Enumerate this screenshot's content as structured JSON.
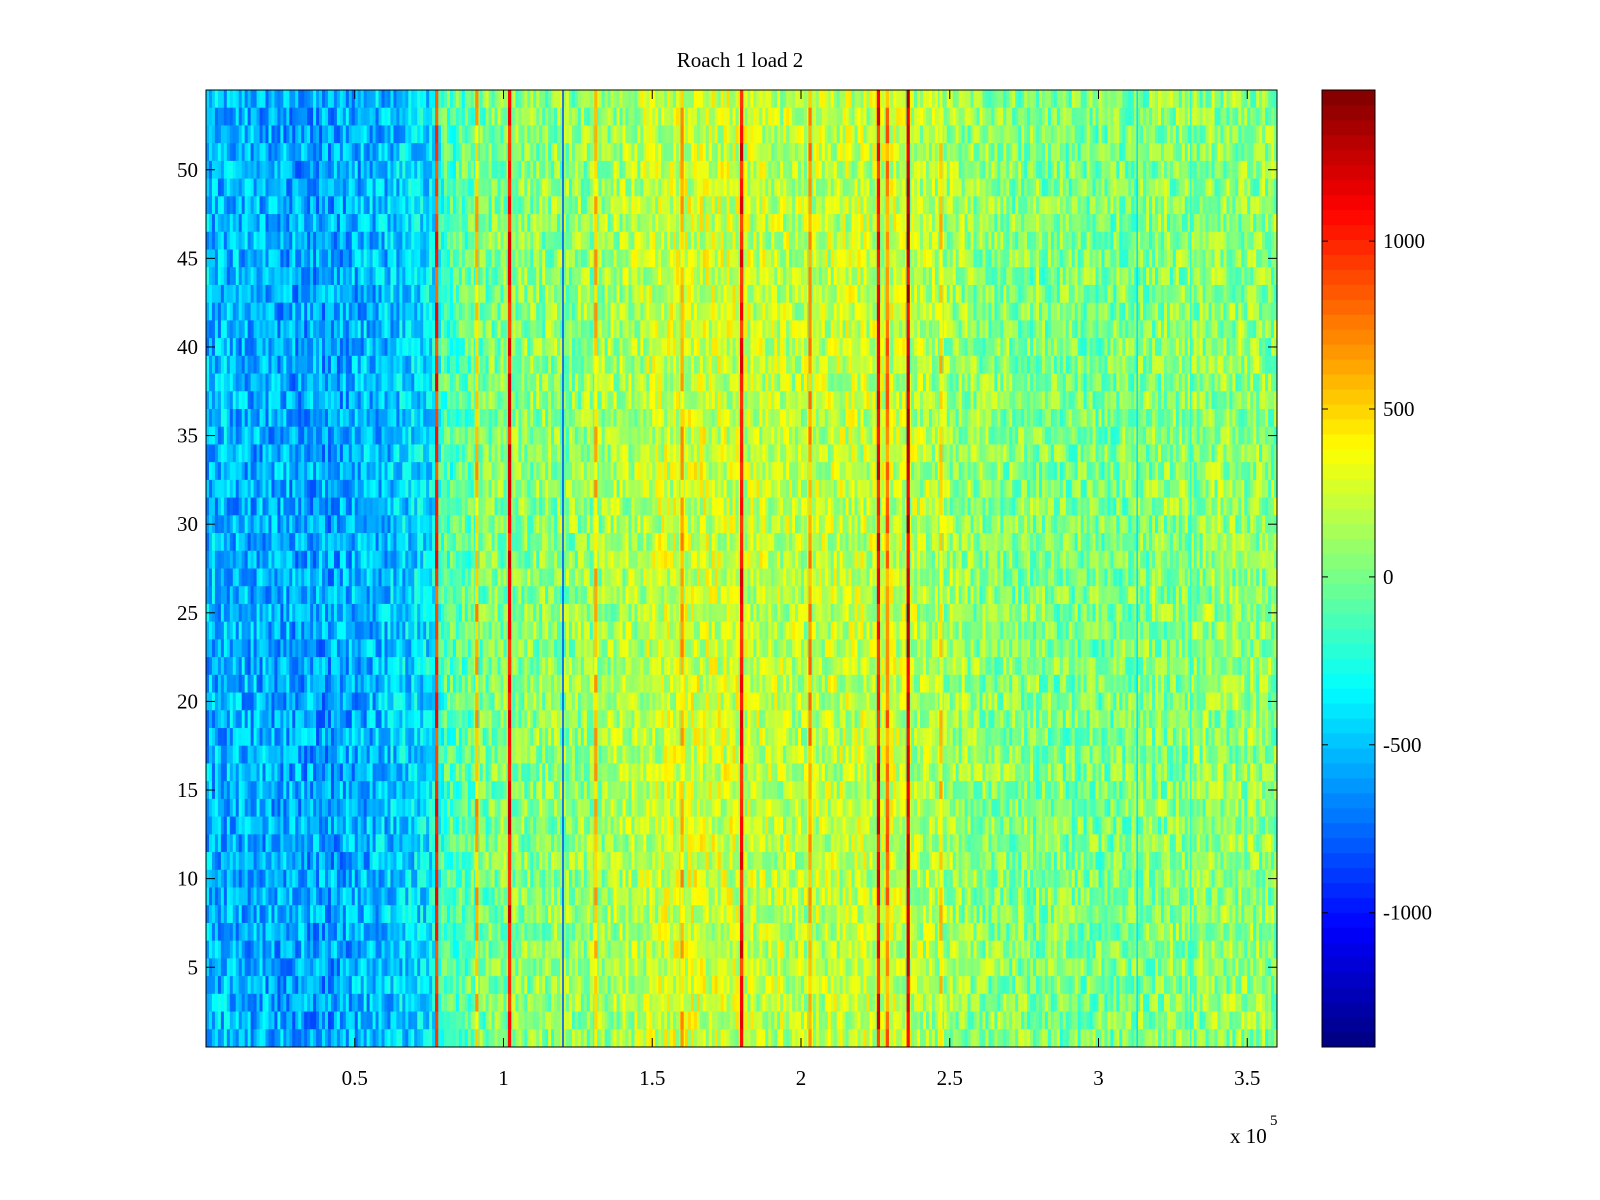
{
  "chart_data": {
    "type": "heatmap",
    "title": "Roach 1 load 2",
    "xlabel": "",
    "ylabel": "",
    "x_exponent_label": "x 10",
    "x_exponent_power": "5",
    "xlim": [
      0,
      360000
    ],
    "ylim": [
      0.5,
      54.5
    ],
    "x_ticks": [
      50000,
      100000,
      150000,
      200000,
      250000,
      300000,
      350000
    ],
    "x_tick_labels": [
      "0.5",
      "1",
      "1.5",
      "2",
      "2.5",
      "3",
      "3.5"
    ],
    "y_ticks": [
      5,
      10,
      15,
      20,
      25,
      30,
      35,
      40,
      45,
      50
    ],
    "y_tick_labels": [
      "5",
      "10",
      "15",
      "20",
      "25",
      "30",
      "35",
      "40",
      "45",
      "50"
    ],
    "rows": 54,
    "colormap": "jet",
    "clim": [
      -1400,
      1450
    ],
    "colorbar_ticks": [
      1000,
      500,
      0,
      -500,
      -1000
    ],
    "colorbar_tick_labels": [
      "1000",
      "500",
      "0",
      "-500",
      "-1000"
    ],
    "column_profile": [
      {
        "x": 0,
        "mean": -520
      },
      {
        "x": 20000,
        "mean": -560
      },
      {
        "x": 40000,
        "mean": -600
      },
      {
        "x": 60000,
        "mean": -500
      },
      {
        "x": 76000,
        "mean": -380
      },
      {
        "x": 80000,
        "mean": -120
      },
      {
        "x": 100000,
        "mean": 40
      },
      {
        "x": 130000,
        "mean": 80
      },
      {
        "x": 160000,
        "mean": 260
      },
      {
        "x": 200000,
        "mean": 180
      },
      {
        "x": 230000,
        "mean": 220
      },
      {
        "x": 260000,
        "mean": 60
      },
      {
        "x": 300000,
        "mean": 0
      },
      {
        "x": 340000,
        "mean": 80
      },
      {
        "x": 360000,
        "mean": 60
      }
    ],
    "hot_stripes": [
      {
        "x": 77500,
        "value": 1150
      },
      {
        "x": 91000,
        "value": 750
      },
      {
        "x": 102000,
        "value": 1250
      },
      {
        "x": 131000,
        "value": 700
      },
      {
        "x": 160000,
        "value": 750
      },
      {
        "x": 180000,
        "value": 1250
      },
      {
        "x": 203000,
        "value": 850
      },
      {
        "x": 226000,
        "value": 1250
      },
      {
        "x": 229000,
        "value": 900
      },
      {
        "x": 236000,
        "value": 1400
      },
      {
        "x": 247000,
        "value": 650
      }
    ],
    "dark_lines": [
      {
        "x": 120000,
        "value": -800
      },
      {
        "x": 313000,
        "value": -400
      },
      {
        "x": 331000,
        "value": -200
      }
    ]
  }
}
